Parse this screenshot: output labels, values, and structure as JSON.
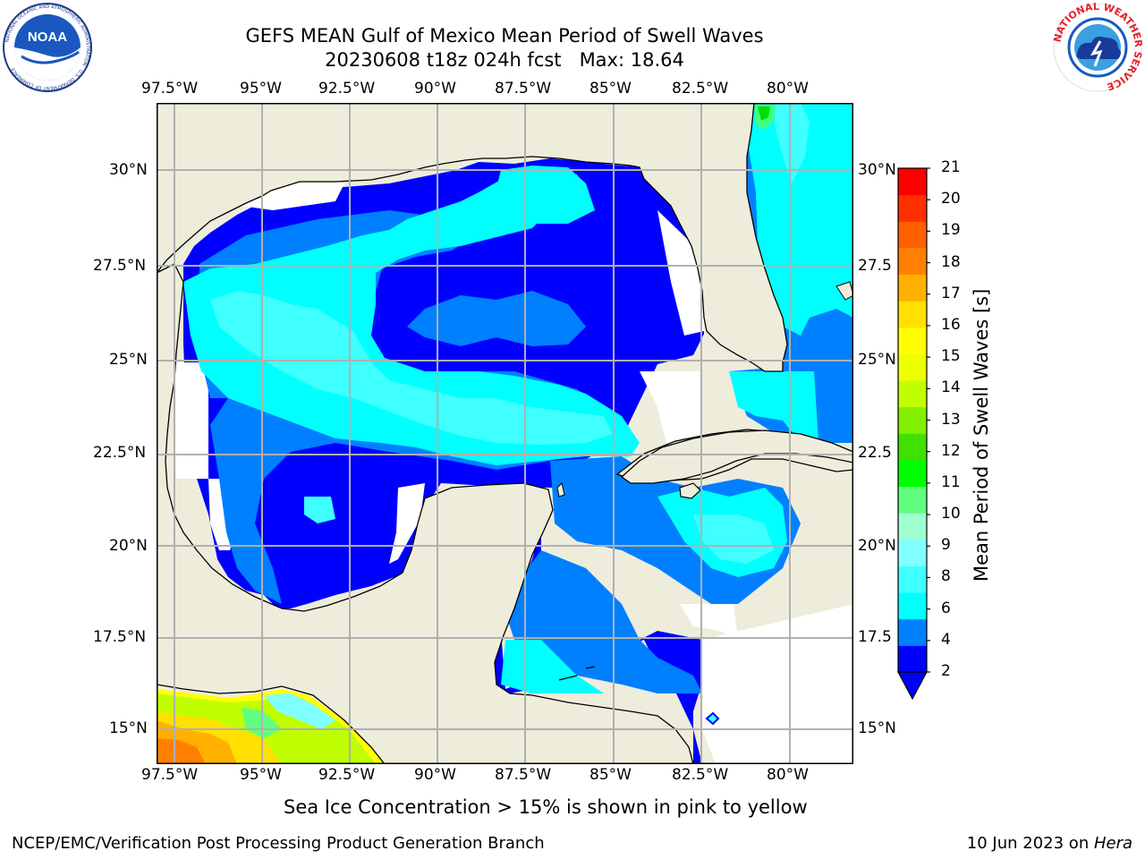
{
  "header": {
    "title_line1": "GEFS MEAN Gulf of Mexico Mean Period of Swell Waves",
    "title_line2": "20230608 t18z 024h fcst   Max: 18.64"
  },
  "logos": {
    "left_text": "NOAA",
    "left_ring_text": "NATIONAL OCEANIC AND ATMOSPHERIC ADMINISTRATION · U.S. DEPARTMENT OF COMMERCE",
    "right_ring_text": "NATIONAL WEATHER SERVICE"
  },
  "map": {
    "lon_labels": [
      "97.5°W",
      "95°W",
      "92.5°W",
      "90°W",
      "87.5°W",
      "85°W",
      "82.5°W",
      "80°W"
    ],
    "lat_labels": [
      "30°N",
      "27.5°N",
      "25°N",
      "22.5°N",
      "20°N",
      "17.5°N",
      "15°N"
    ],
    "lat_labels_right": [
      "30°N",
      "27.5",
      "25°N",
      "22.5",
      "20°N",
      "17.5",
      "15°N"
    ],
    "colors": {
      "land": "#eeeddc",
      "grid": "#b0b0b0",
      "coast": "#000000",
      "missing": "#ffffff"
    }
  },
  "colorbar": {
    "label": "Mean Period of Swell Waves [s]",
    "ticks": [
      "21",
      "20",
      "19",
      "18",
      "17",
      "16",
      "15",
      "14",
      "13",
      "12",
      "11",
      "10",
      "9",
      "8",
      "6",
      "4",
      "2"
    ],
    "colors": [
      "#0000ff",
      "#0080ff",
      "#00ffff",
      "#40ffff",
      "#80ffff",
      "#a0ffd0",
      "#60ff80",
      "#00ff00",
      "#40e000",
      "#80f000",
      "#c0ff00",
      "#eeff00",
      "#ffff00",
      "#ffe000",
      "#ffb000",
      "#ff8000",
      "#ff6000",
      "#ff3000",
      "#ff0000"
    ]
  },
  "notes": {
    "sea_ice": "Sea Ice Concentration > 15% is shown in pink to yellow"
  },
  "footer": {
    "left": "NCEP/EMC/Verification Post Processing Product Generation Branch",
    "date": "10 Jun 2023 on ",
    "host": "Hera"
  }
}
